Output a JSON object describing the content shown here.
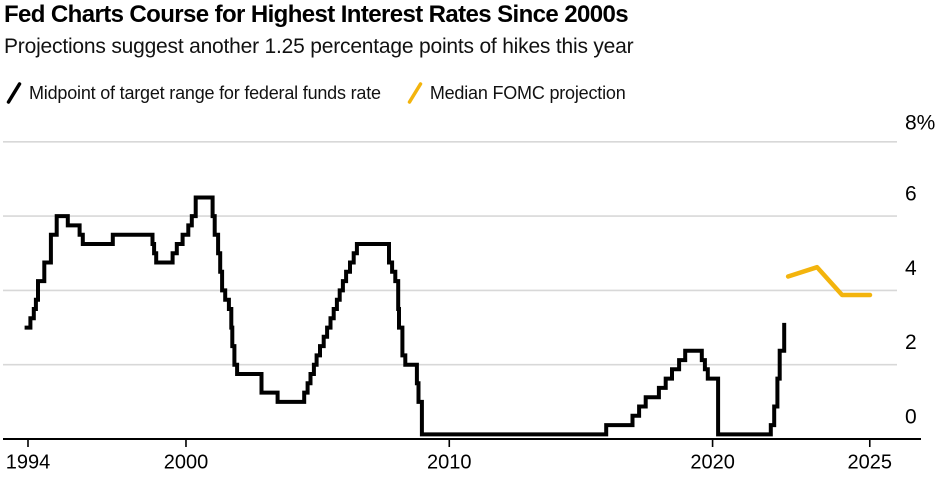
{
  "title": "Fed Charts Course for Highest Interest Rates Since 2000s",
  "subtitle": "Projections suggest another 1.25 percentage points of hikes this year",
  "legend": [
    {
      "label": "Midpoint of target range for federal funds rate",
      "color": "#000000"
    },
    {
      "label": "Median FOMC projection",
      "color": "#F3B40D"
    }
  ],
  "colors": {
    "background": "#ffffff",
    "gridline": "#d8d8d8",
    "axis": "#000000",
    "text": "#000000",
    "fed_line": "#000000",
    "projection_line": "#F3B40D"
  },
  "chart_data": {
    "type": "line",
    "title": "Fed Charts Course for Highest Interest Rates Since 2000s",
    "subtitle": "Projections suggest another 1.25 percentage points of hikes this year",
    "xlabel": "",
    "ylabel": "%",
    "ylim": [
      0,
      8
    ],
    "xlim": [
      1993.8,
      2026.5
    ],
    "grid": true,
    "legend_position": "top",
    "y_ticks": [
      {
        "value": 8,
        "label": "8%"
      },
      {
        "value": 6,
        "label": "6"
      },
      {
        "value": 4,
        "label": "4"
      },
      {
        "value": 2,
        "label": "2"
      },
      {
        "value": 0,
        "label": "0"
      }
    ],
    "x_ticks": [
      {
        "label": "1994",
        "pos": 1994.0
      },
      {
        "label": "2000",
        "pos": 2000.0
      },
      {
        "label": "2010",
        "pos": 2010.0
      },
      {
        "label": "2020",
        "pos": 2020.0
      },
      {
        "label": "2025",
        "pos": 2025.97
      }
    ],
    "series": [
      {
        "name": "Midpoint of target range for federal funds rate",
        "color": "#000000",
        "line_style": "step",
        "stroke_width": 4,
        "points": [
          [
            1993.87,
            3.0
          ],
          [
            1994.09,
            3.25
          ],
          [
            1994.22,
            3.5
          ],
          [
            1994.3,
            3.75
          ],
          [
            1994.38,
            4.25
          ],
          [
            1994.62,
            4.75
          ],
          [
            1994.87,
            5.5
          ],
          [
            1995.09,
            6.0
          ],
          [
            1995.51,
            5.75
          ],
          [
            1995.96,
            5.5
          ],
          [
            1996.08,
            5.25
          ],
          [
            1997.22,
            5.5
          ],
          [
            1998.73,
            5.25
          ],
          [
            1998.79,
            5.0
          ],
          [
            1998.87,
            4.75
          ],
          [
            1999.49,
            5.0
          ],
          [
            1999.65,
            5.25
          ],
          [
            1999.87,
            5.5
          ],
          [
            2000.09,
            5.75
          ],
          [
            2000.22,
            6.0
          ],
          [
            2000.37,
            6.5
          ],
          [
            2001.01,
            6.0
          ],
          [
            2001.09,
            5.5
          ],
          [
            2001.22,
            5.0
          ],
          [
            2001.3,
            4.5
          ],
          [
            2001.37,
            4.0
          ],
          [
            2001.49,
            3.75
          ],
          [
            2001.63,
            3.5
          ],
          [
            2001.72,
            3.0
          ],
          [
            2001.76,
            2.5
          ],
          [
            2001.84,
            2.0
          ],
          [
            2001.94,
            1.75
          ],
          [
            2002.87,
            1.25
          ],
          [
            2003.48,
            1.0
          ],
          [
            2004.49,
            1.25
          ],
          [
            2004.62,
            1.5
          ],
          [
            2004.73,
            1.75
          ],
          [
            2004.86,
            2.0
          ],
          [
            2004.96,
            2.25
          ],
          [
            2005.09,
            2.5
          ],
          [
            2005.23,
            2.75
          ],
          [
            2005.36,
            3.0
          ],
          [
            2005.49,
            3.25
          ],
          [
            2005.61,
            3.5
          ],
          [
            2005.73,
            3.75
          ],
          [
            2005.84,
            4.0
          ],
          [
            2005.96,
            4.25
          ],
          [
            2006.08,
            4.5
          ],
          [
            2006.23,
            4.75
          ],
          [
            2006.37,
            5.0
          ],
          [
            2006.49,
            5.25
          ],
          [
            2007.71,
            4.75
          ],
          [
            2007.83,
            4.5
          ],
          [
            2007.95,
            4.25
          ],
          [
            2008.06,
            3.5
          ],
          [
            2008.09,
            3.0
          ],
          [
            2008.22,
            2.25
          ],
          [
            2008.33,
            2.0
          ],
          [
            2008.77,
            1.5
          ],
          [
            2008.83,
            1.0
          ],
          [
            2008.96,
            0.125
          ],
          [
            2015.96,
            0.375
          ],
          [
            2016.96,
            0.625
          ],
          [
            2017.21,
            0.875
          ],
          [
            2017.46,
            1.125
          ],
          [
            2017.96,
            1.375
          ],
          [
            2018.22,
            1.625
          ],
          [
            2018.46,
            1.875
          ],
          [
            2018.73,
            2.125
          ],
          [
            2018.96,
            2.375
          ],
          [
            2019.59,
            2.125
          ],
          [
            2019.71,
            1.875
          ],
          [
            2019.82,
            1.625
          ],
          [
            2020.21,
            0.125
          ],
          [
            2022.21,
            0.375
          ],
          [
            2022.34,
            0.875
          ],
          [
            2022.46,
            1.625
          ],
          [
            2022.55,
            2.375
          ],
          [
            2022.72,
            3.125
          ]
        ]
      },
      {
        "name": "Median FOMC projection",
        "color": "#F3B40D",
        "line_style": "linear",
        "stroke_width": 4.5,
        "points": [
          [
            2022.87,
            4.375
          ],
          [
            2023.97,
            4.625
          ],
          [
            2024.92,
            3.875
          ],
          [
            2025.98,
            3.875
          ]
        ]
      }
    ]
  }
}
